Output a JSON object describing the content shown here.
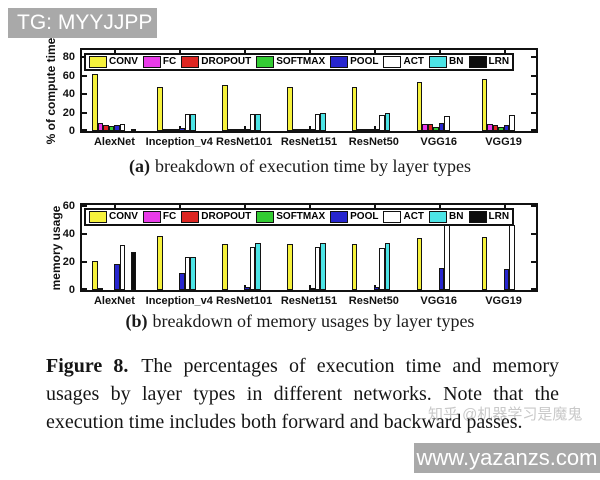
{
  "watermarks": {
    "top_left": "TG: MYYJJPP",
    "zhihu": "知乎 @机器学习是魔鬼",
    "bottom_right": "www.yazanzs.com"
  },
  "legend": {
    "entries": [
      {
        "label": "CONV",
        "color": "#f6f23c"
      },
      {
        "label": "FC",
        "color": "#e93be9"
      },
      {
        "label": "DROPOUT",
        "color": "#dd2622"
      },
      {
        "label": "SOFTMAX",
        "color": "#33cc33"
      },
      {
        "label": "POOL",
        "color": "#2726cf"
      },
      {
        "label": "ACT",
        "color": "#ffffff"
      },
      {
        "label": "BN",
        "color": "#4ce4e6"
      },
      {
        "label": "LRN",
        "color": "#0d0d0d"
      }
    ]
  },
  "chart_data": [
    {
      "id": "a",
      "type": "bar",
      "title": "",
      "ylabel": "% of compute time",
      "xlabel": "",
      "ylim": [
        0,
        88
      ],
      "yticks": [
        0,
        20,
        40,
        60,
        80
      ],
      "grid": false,
      "legend_position": "top-inside",
      "categories": [
        "AlexNet",
        "Inception_v4",
        "ResNet101",
        "ResNet151",
        "ResNet50",
        "VGG16",
        "VGG19"
      ],
      "series": [
        {
          "name": "CONV",
          "values": [
            62,
            48,
            50,
            48,
            48,
            53,
            57
          ]
        },
        {
          "name": "FC",
          "values": [
            9,
            1,
            0.5,
            0.5,
            0.5,
            8,
            8
          ]
        },
        {
          "name": "DROPOUT",
          "values": [
            7,
            0.4,
            0.4,
            0.4,
            0.5,
            8,
            6
          ]
        },
        {
          "name": "SOFTMAX",
          "values": [
            5,
            0.4,
            0.3,
            0.3,
            0.3,
            4,
            4
          ]
        },
        {
          "name": "POOL",
          "values": [
            6,
            3,
            2,
            2,
            1.5,
            9,
            6
          ]
        },
        {
          "name": "ACT",
          "values": [
            8,
            19,
            18,
            18,
            17,
            16,
            17
          ]
        },
        {
          "name": "BN",
          "values": [
            0,
            19,
            19,
            19.5,
            19.5,
            0,
            0
          ]
        },
        {
          "name": "LRN",
          "values": [
            2,
            0,
            0,
            0,
            0,
            0,
            0
          ]
        }
      ],
      "caption_tag": "(a)",
      "caption_text": "breakdown of execution time by layer types"
    },
    {
      "id": "b",
      "type": "bar",
      "title": "",
      "ylabel": "memory usage",
      "xlabel": "",
      "ylim": [
        0,
        61
      ],
      "yticks": [
        0,
        20,
        40,
        60
      ],
      "grid": false,
      "legend_position": "top-inside",
      "categories": [
        "AlexNet",
        "Inception_v4",
        "ResNet101",
        "ResNet151",
        "ResNet50",
        "VGG16",
        "VGG19"
      ],
      "series": [
        {
          "name": "CONV",
          "values": [
            21,
            39,
            33,
            33,
            33,
            37,
            38
          ]
        },
        {
          "name": "FC",
          "values": [
            0.5,
            0,
            0,
            0,
            0,
            0,
            0
          ]
        },
        {
          "name": "DROPOUT",
          "values": [
            0,
            0,
            0,
            0,
            0,
            0,
            0
          ]
        },
        {
          "name": "SOFTMAX",
          "values": [
            0,
            0,
            0,
            0,
            0,
            0,
            0
          ]
        },
        {
          "name": "POOL",
          "values": [
            19,
            12,
            2,
            1.5,
            2.5,
            16,
            15
          ]
        },
        {
          "name": "ACT",
          "values": [
            32,
            24,
            31,
            31,
            30,
            47,
            47
          ]
        },
        {
          "name": "BN",
          "values": [
            0,
            24,
            34,
            34,
            34,
            0,
            0
          ]
        },
        {
          "name": "LRN",
          "values": [
            27,
            0,
            0,
            0,
            0,
            0,
            0
          ]
        }
      ],
      "caption_tag": "(b)",
      "caption_text": "breakdown of memory usages by layer types"
    }
  ],
  "figure_caption": {
    "tag": "Figure 8.",
    "text": "The percentages of execution time and memory usages by layer types in different networks. Note that the execution time includes both forward and backward passes."
  }
}
